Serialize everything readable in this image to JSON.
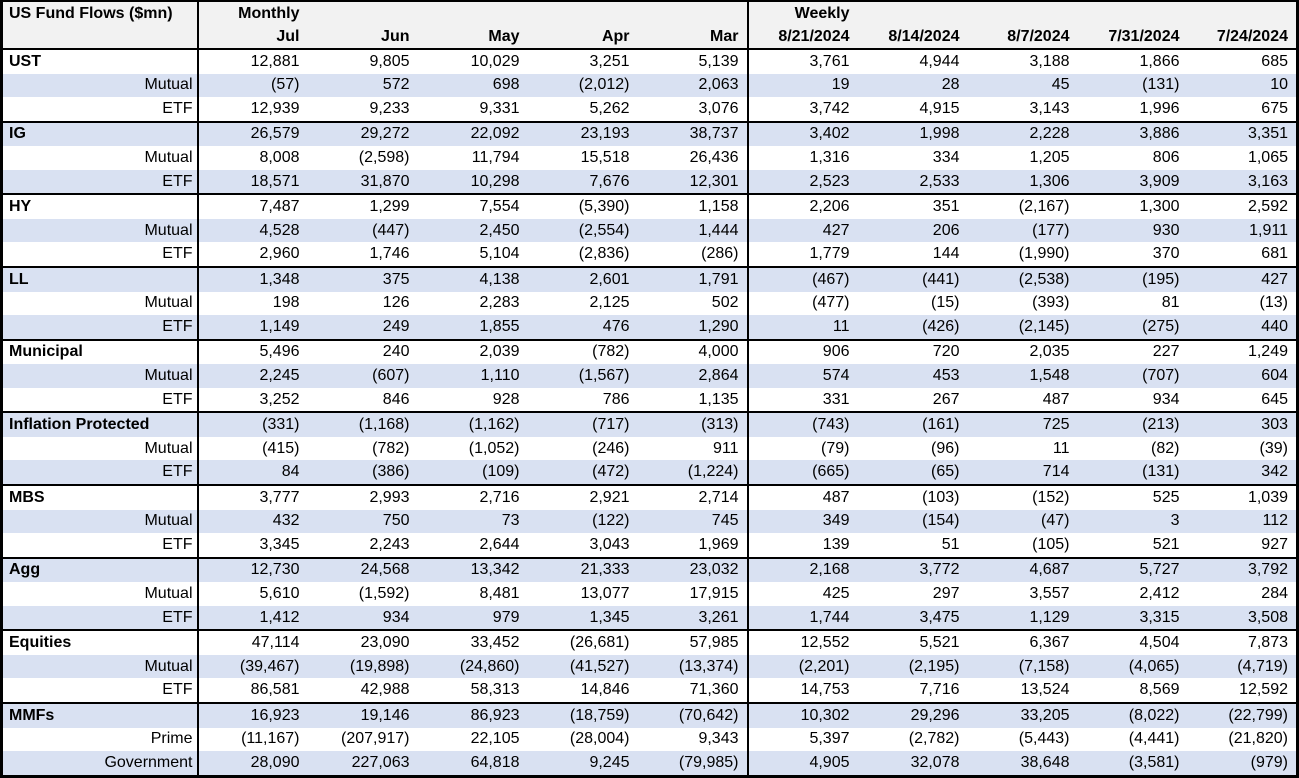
{
  "title": "US Fund Flows ($mn)",
  "header": {
    "monthly_label": "Monthly",
    "weekly_label": "Weekly"
  },
  "colors": {
    "band_row": "#D9E1F2",
    "plain_row": "#FFFFFF",
    "header_bg": "#F2F2F2",
    "border": "#000000",
    "text": "#000000"
  },
  "chart_data": {
    "type": "table",
    "title": "US Fund Flows ($mn)",
    "column_groups": [
      {
        "label": "Monthly",
        "span": 5
      },
      {
        "label": "Weekly",
        "span": 5
      }
    ],
    "columns": [
      "Jul",
      "Jun",
      "May",
      "Apr",
      "Mar",
      "8/21/2024",
      "8/14/2024",
      "8/7/2024",
      "7/31/2024",
      "7/24/2024"
    ],
    "rows": [
      {
        "label": "UST",
        "level": "category",
        "values": [
          "12,881",
          "9,805",
          "10,029",
          "3,251",
          "5,139",
          "3,761",
          "4,944",
          "3,188",
          "1,866",
          "685"
        ]
      },
      {
        "label": "Mutual",
        "level": "sub",
        "values": [
          "(57)",
          "572",
          "698",
          "(2,012)",
          "2,063",
          "19",
          "28",
          "45",
          "(131)",
          "10"
        ]
      },
      {
        "label": "ETF",
        "level": "sub",
        "values": [
          "12,939",
          "9,233",
          "9,331",
          "5,262",
          "3,076",
          "3,742",
          "4,915",
          "3,143",
          "1,996",
          "675"
        ]
      },
      {
        "label": "IG",
        "level": "category",
        "values": [
          "26,579",
          "29,272",
          "22,092",
          "23,193",
          "38,737",
          "3,402",
          "1,998",
          "2,228",
          "3,886",
          "3,351"
        ]
      },
      {
        "label": "Mutual",
        "level": "sub",
        "values": [
          "8,008",
          "(2,598)",
          "11,794",
          "15,518",
          "26,436",
          "1,316",
          "334",
          "1,205",
          "806",
          "1,065"
        ]
      },
      {
        "label": "ETF",
        "level": "sub",
        "values": [
          "18,571",
          "31,870",
          "10,298",
          "7,676",
          "12,301",
          "2,523",
          "2,533",
          "1,306",
          "3,909",
          "3,163"
        ]
      },
      {
        "label": "HY",
        "level": "category",
        "values": [
          "7,487",
          "1,299",
          "7,554",
          "(5,390)",
          "1,158",
          "2,206",
          "351",
          "(2,167)",
          "1,300",
          "2,592"
        ]
      },
      {
        "label": "Mutual",
        "level": "sub",
        "values": [
          "4,528",
          "(447)",
          "2,450",
          "(2,554)",
          "1,444",
          "427",
          "206",
          "(177)",
          "930",
          "1,911"
        ]
      },
      {
        "label": "ETF",
        "level": "sub",
        "values": [
          "2,960",
          "1,746",
          "5,104",
          "(2,836)",
          "(286)",
          "1,779",
          "144",
          "(1,990)",
          "370",
          "681"
        ]
      },
      {
        "label": "LL",
        "level": "category",
        "values": [
          "1,348",
          "375",
          "4,138",
          "2,601",
          "1,791",
          "(467)",
          "(441)",
          "(2,538)",
          "(195)",
          "427"
        ]
      },
      {
        "label": "Mutual",
        "level": "sub",
        "values": [
          "198",
          "126",
          "2,283",
          "2,125",
          "502",
          "(477)",
          "(15)",
          "(393)",
          "81",
          "(13)"
        ]
      },
      {
        "label": "ETF",
        "level": "sub",
        "values": [
          "1,149",
          "249",
          "1,855",
          "476",
          "1,290",
          "11",
          "(426)",
          "(2,145)",
          "(275)",
          "440"
        ]
      },
      {
        "label": "Municipal",
        "level": "category",
        "values": [
          "5,496",
          "240",
          "2,039",
          "(782)",
          "4,000",
          "906",
          "720",
          "2,035",
          "227",
          "1,249"
        ]
      },
      {
        "label": "Mutual",
        "level": "sub",
        "values": [
          "2,245",
          "(607)",
          "1,110",
          "(1,567)",
          "2,864",
          "574",
          "453",
          "1,548",
          "(707)",
          "604"
        ]
      },
      {
        "label": "ETF",
        "level": "sub",
        "values": [
          "3,252",
          "846",
          "928",
          "786",
          "1,135",
          "331",
          "267",
          "487",
          "934",
          "645"
        ]
      },
      {
        "label": "Inflation Protected",
        "level": "category",
        "values": [
          "(331)",
          "(1,168)",
          "(1,162)",
          "(717)",
          "(313)",
          "(743)",
          "(161)",
          "725",
          "(213)",
          "303"
        ]
      },
      {
        "label": "Mutual",
        "level": "sub",
        "values": [
          "(415)",
          "(782)",
          "(1,052)",
          "(246)",
          "911",
          "(79)",
          "(96)",
          "11",
          "(82)",
          "(39)"
        ]
      },
      {
        "label": "ETF",
        "level": "sub",
        "values": [
          "84",
          "(386)",
          "(109)",
          "(472)",
          "(1,224)",
          "(665)",
          "(65)",
          "714",
          "(131)",
          "342"
        ]
      },
      {
        "label": "MBS",
        "level": "category",
        "values": [
          "3,777",
          "2,993",
          "2,716",
          "2,921",
          "2,714",
          "487",
          "(103)",
          "(152)",
          "525",
          "1,039"
        ]
      },
      {
        "label": "Mutual",
        "level": "sub",
        "values": [
          "432",
          "750",
          "73",
          "(122)",
          "745",
          "349",
          "(154)",
          "(47)",
          "3",
          "112"
        ]
      },
      {
        "label": "ETF",
        "level": "sub",
        "values": [
          "3,345",
          "2,243",
          "2,644",
          "3,043",
          "1,969",
          "139",
          "51",
          "(105)",
          "521",
          "927"
        ]
      },
      {
        "label": "Agg",
        "level": "category",
        "values": [
          "12,730",
          "24,568",
          "13,342",
          "21,333",
          "23,032",
          "2,168",
          "3,772",
          "4,687",
          "5,727",
          "3,792"
        ]
      },
      {
        "label": "Mutual",
        "level": "sub",
        "values": [
          "5,610",
          "(1,592)",
          "8,481",
          "13,077",
          "17,915",
          "425",
          "297",
          "3,557",
          "2,412",
          "284"
        ]
      },
      {
        "label": "ETF",
        "level": "sub",
        "values": [
          "1,412",
          "934",
          "979",
          "1,345",
          "3,261",
          "1,744",
          "3,475",
          "1,129",
          "3,315",
          "3,508"
        ]
      },
      {
        "label": "Equities",
        "level": "category",
        "values": [
          "47,114",
          "23,090",
          "33,452",
          "(26,681)",
          "57,985",
          "12,552",
          "5,521",
          "6,367",
          "4,504",
          "7,873"
        ]
      },
      {
        "label": "Mutual",
        "level": "sub",
        "values": [
          "(39,467)",
          "(19,898)",
          "(24,860)",
          "(41,527)",
          "(13,374)",
          "(2,201)",
          "(2,195)",
          "(7,158)",
          "(4,065)",
          "(4,719)"
        ]
      },
      {
        "label": "ETF",
        "level": "sub",
        "values": [
          "86,581",
          "42,988",
          "58,313",
          "14,846",
          "71,360",
          "14,753",
          "7,716",
          "13,524",
          "8,569",
          "12,592"
        ]
      },
      {
        "label": "MMFs",
        "level": "category",
        "values": [
          "16,923",
          "19,146",
          "86,923",
          "(18,759)",
          "(70,642)",
          "10,302",
          "29,296",
          "33,205",
          "(8,022)",
          "(22,799)"
        ]
      },
      {
        "label": "Prime",
        "level": "sub",
        "values": [
          "(11,167)",
          "(207,917)",
          "22,105",
          "(28,004)",
          "9,343",
          "5,397",
          "(2,782)",
          "(5,443)",
          "(4,441)",
          "(21,820)"
        ]
      },
      {
        "label": "Government",
        "level": "sub",
        "values": [
          "28,090",
          "227,063",
          "64,818",
          "9,245",
          "(79,985)",
          "4,905",
          "32,078",
          "38,648",
          "(3,581)",
          "(979)"
        ]
      }
    ]
  }
}
